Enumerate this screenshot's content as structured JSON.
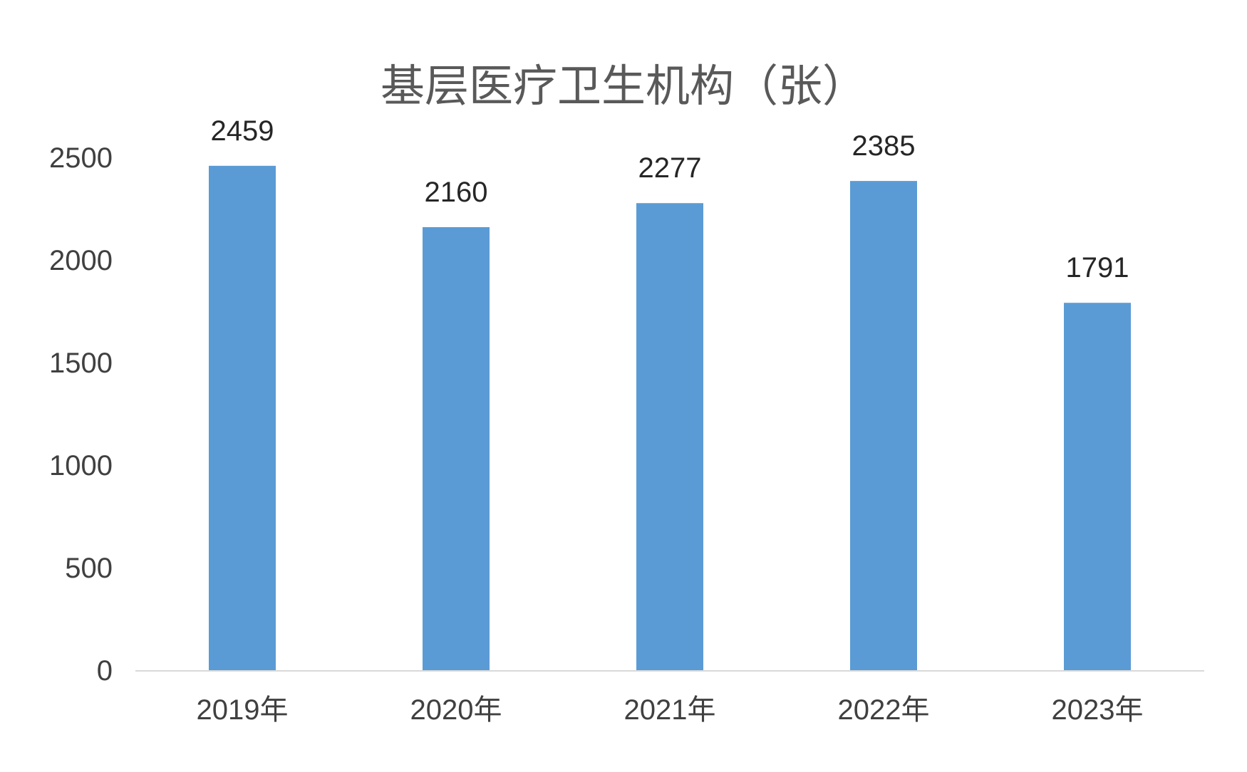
{
  "chart_data": {
    "type": "bar",
    "title": "基层医疗卫生机构（张）",
    "categories": [
      "2019年",
      "2020年",
      "2021年",
      "2022年",
      "2023年"
    ],
    "values": [
      2459,
      2160,
      2277,
      2385,
      1791
    ],
    "data_labels": [
      "2459",
      "2160",
      "2277",
      "2385",
      "1791"
    ],
    "ylim": [
      0,
      2500
    ],
    "yticks": [
      0,
      500,
      1000,
      1500,
      2000,
      2500
    ],
    "xlabel": "",
    "ylabel": "",
    "grid": false,
    "legend": "none",
    "colors": {
      "bar": "#5b9bd5",
      "axis_line": "#d9d9d9"
    }
  }
}
